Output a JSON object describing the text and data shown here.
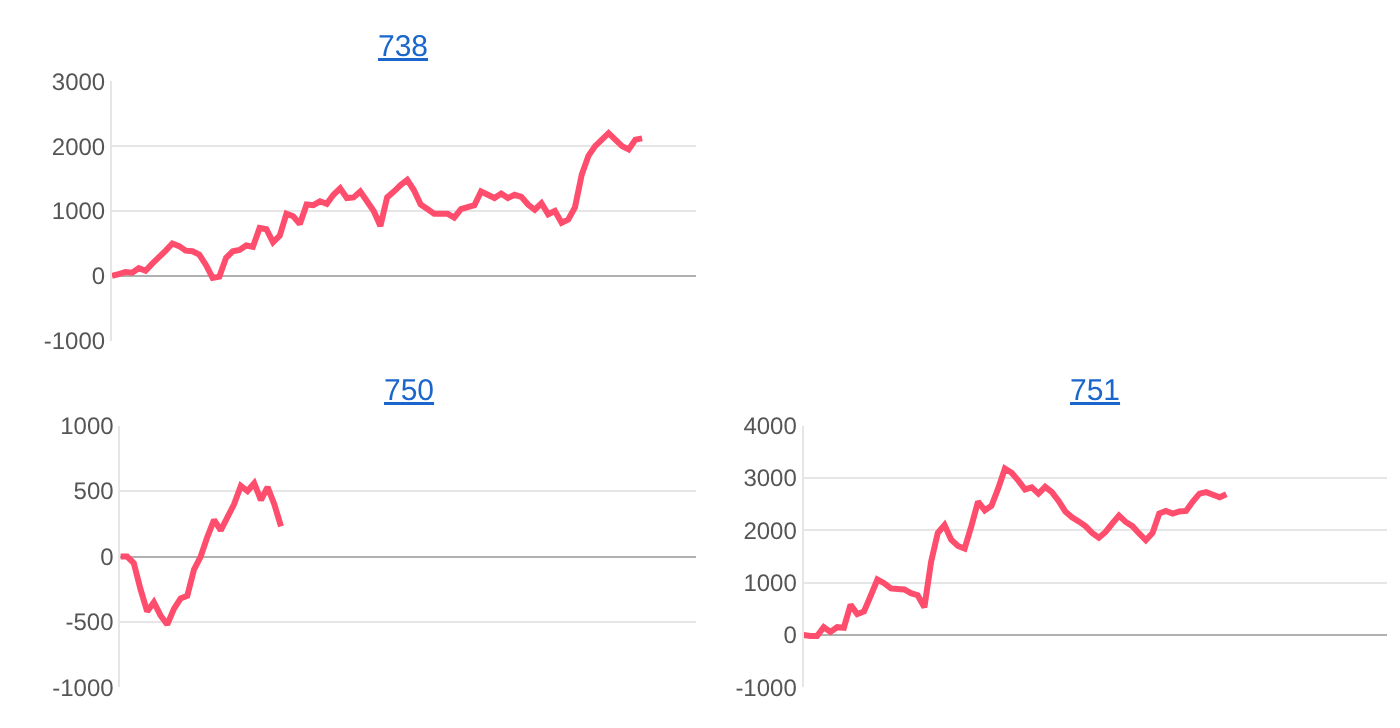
{
  "chart_data": [
    {
      "type": "line",
      "title": "738",
      "categories": [
        null,
        null,
        null,
        null,
        null,
        null,
        null,
        null,
        null,
        null,
        null,
        null,
        null,
        null,
        null,
        null,
        null,
        null,
        null,
        null,
        null,
        null,
        null,
        null,
        null,
        null,
        null,
        null,
        null,
        null,
        null,
        null,
        null,
        null,
        null,
        null,
        null,
        null,
        null,
        null,
        null,
        null,
        null,
        null,
        null,
        null,
        null,
        null,
        null,
        null,
        null,
        null,
        null,
        null,
        null,
        null,
        null,
        null,
        null,
        null,
        null,
        null,
        null,
        null,
        null,
        null,
        null,
        null,
        null,
        null,
        null,
        null,
        null,
        null,
        null,
        null,
        null,
        null,
        null,
        null,
        null,
        null,
        null,
        null,
        null,
        null,
        null,
        null
      ],
      "series": [
        {
          "color": "#ff4d6d",
          "values": [
            0,
            30,
            60,
            50,
            120,
            80,
            190,
            290,
            390,
            500,
            460,
            390,
            380,
            330,
            170,
            -30,
            -10,
            280,
            380,
            400,
            470,
            450,
            740,
            720,
            520,
            620,
            960,
            920,
            800,
            1100,
            1090,
            1150,
            1110,
            1250,
            1350,
            1200,
            1210,
            1300,
            1150,
            1000,
            770,
            1210,
            1300,
            1400,
            1480,
            1320,
            1100,
            1030,
            960,
            960,
            960,
            900,
            1030,
            1060,
            1090,
            1300,
            1250,
            1200,
            1270,
            1200,
            1250,
            1220,
            1100,
            1020,
            1120,
            950,
            1000,
            820,
            870,
            1060,
            1560,
            1850,
            2000,
            2100,
            2200,
            2100,
            2000,
            1950,
            2100,
            2120,
            null,
            null,
            null,
            null,
            null,
            null,
            null,
            null
          ]
        }
      ],
      "ylim": [
        -1000,
        3000
      ],
      "yticks": [
        -1000,
        0,
        1000,
        2000,
        3000
      ],
      "grid": "y",
      "tick_labels": "y",
      "marker": "none",
      "line_style": "solid"
    },
    {
      "type": "line",
      "title": "750",
      "categories": [
        null,
        null,
        null,
        null,
        null,
        null,
        null,
        null,
        null,
        null,
        null,
        null,
        null,
        null,
        null,
        null,
        null,
        null,
        null,
        null,
        null,
        null,
        null,
        null,
        null,
        null,
        null,
        null,
        null,
        null,
        null,
        null,
        null,
        null,
        null,
        null,
        null,
        null,
        null,
        null,
        null,
        null,
        null,
        null,
        null,
        null,
        null,
        null,
        null,
        null,
        null,
        null,
        null,
        null,
        null,
        null,
        null,
        null,
        null,
        null,
        null,
        null,
        null,
        null,
        null,
        null,
        null,
        null,
        null,
        null,
        null,
        null,
        null,
        null,
        null,
        null,
        null,
        null,
        null,
        null,
        null,
        null,
        null,
        null,
        null,
        null,
        null
      ],
      "series": [
        {
          "color": "#ff4d6d",
          "values": [
            0,
            0,
            -50,
            -250,
            -420,
            -350,
            -450,
            -520,
            -400,
            -320,
            -300,
            -100,
            0,
            150,
            280,
            200,
            300,
            400,
            540,
            500,
            560,
            430,
            530,
            400,
            230,
            null,
            null,
            null,
            null,
            null,
            null,
            null,
            null,
            null,
            null,
            null,
            null,
            null,
            null,
            null,
            null,
            null,
            null,
            null,
            null,
            null,
            null,
            null,
            null,
            null,
            null,
            null,
            null,
            null,
            null,
            null,
            null,
            null,
            null,
            null,
            null,
            null,
            null,
            null,
            null,
            null,
            null,
            null,
            null,
            null,
            null,
            null,
            null,
            null,
            null,
            null,
            null,
            null,
            null,
            null,
            null,
            null,
            null,
            null,
            null,
            null,
            null
          ]
        }
      ],
      "ylim": [
        -1000,
        1000
      ],
      "yticks": [
        -1000,
        -500,
        0,
        500,
        1000
      ],
      "grid": "y",
      "tick_labels": "y",
      "marker": "none",
      "line_style": "solid"
    },
    {
      "type": "line",
      "title": "751",
      "categories": [
        null,
        null,
        null,
        null,
        null,
        null,
        null,
        null,
        null,
        null,
        null,
        null,
        null,
        null,
        null,
        null,
        null,
        null,
        null,
        null,
        null,
        null,
        null,
        null,
        null,
        null,
        null,
        null,
        null,
        null,
        null,
        null,
        null,
        null,
        null,
        null,
        null,
        null,
        null,
        null,
        null,
        null,
        null,
        null,
        null,
        null,
        null,
        null,
        null,
        null,
        null,
        null,
        null,
        null,
        null,
        null,
        null,
        null,
        null,
        null,
        null,
        null,
        null,
        null,
        null,
        null,
        null,
        null,
        null,
        null,
        null,
        null,
        null,
        null,
        null,
        null,
        null,
        null,
        null,
        null,
        null,
        null,
        null,
        null,
        null,
        null,
        null,
        null
      ],
      "series": [
        {
          "color": "#ff4d6d",
          "values": [
            0,
            -20,
            -20,
            150,
            60,
            150,
            140,
            580,
            400,
            450,
            750,
            1060,
            990,
            890,
            880,
            870,
            800,
            760,
            530,
            1400,
            1950,
            2100,
            1820,
            1700,
            1650,
            2080,
            2550,
            2380,
            2470,
            2800,
            3180,
            3100,
            2950,
            2780,
            2820,
            2700,
            2830,
            2730,
            2560,
            2360,
            2250,
            2170,
            2080,
            1950,
            1860,
            1970,
            2130,
            2280,
            2160,
            2080,
            1940,
            1810,
            1950,
            2320,
            2370,
            2320,
            2360,
            2370,
            2550,
            2700,
            2730,
            2680,
            2630,
            2690,
            null,
            null,
            null,
            null,
            null,
            null,
            null,
            null,
            null,
            null,
            null,
            null,
            null,
            null,
            null,
            null,
            null,
            null,
            null,
            null,
            null,
            null,
            null,
            null
          ]
        }
      ],
      "ylim": [
        -1000,
        4000
      ],
      "yticks": [
        -1000,
        0,
        1000,
        2000,
        3000,
        4000
      ],
      "grid": "y",
      "tick_labels": "y",
      "marker": "none",
      "line_style": "solid"
    }
  ]
}
